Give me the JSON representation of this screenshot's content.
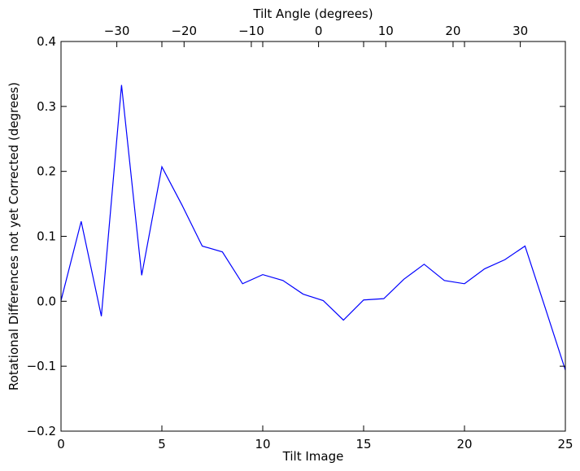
{
  "chart_data": {
    "type": "line",
    "title": "",
    "xlabel": "Tilt Image",
    "ylabel": "Rotational Differences not yet Corrected (degrees)",
    "x2label": "Tilt Angle (degrees)",
    "xlim": [
      0,
      25
    ],
    "ylim": [
      -0.2,
      0.4
    ],
    "x2lim": [
      -38.3,
      36.7
    ],
    "xticks": [
      0,
      5,
      10,
      15,
      20,
      25
    ],
    "xtick_labels": [
      "0",
      "5",
      "10",
      "15",
      "20",
      "25"
    ],
    "yticks": [
      -0.2,
      -0.1,
      0.0,
      0.1,
      0.2,
      0.3,
      0.4
    ],
    "ytick_labels": [
      "−0.2",
      "−0.1",
      "0.0",
      "0.1",
      "0.2",
      "0.3",
      "0.4"
    ],
    "x2ticks": [
      -30,
      -20,
      -10,
      0,
      10,
      20,
      30
    ],
    "x2tick_labels": [
      "−30",
      "−20",
      "−10",
      "0",
      "10",
      "20",
      "30"
    ],
    "grid": false,
    "line_color": "#0000ff",
    "series": [
      {
        "x": [
          0,
          1,
          2,
          3,
          4,
          5,
          6,
          7,
          8,
          9,
          10,
          11,
          12,
          13,
          14,
          15,
          16,
          17,
          18,
          19,
          20,
          21,
          22,
          23,
          24,
          25
        ],
        "values": [
          0.001,
          0.123,
          -0.023,
          0.333,
          0.04,
          0.207,
          0.148,
          0.085,
          0.076,
          0.027,
          0.041,
          0.032,
          0.011,
          0.001,
          -0.029,
          0.002,
          0.004,
          0.034,
          0.057,
          0.032,
          0.027,
          0.05,
          0.064,
          0.085,
          -0.01,
          -0.106
        ]
      }
    ]
  }
}
